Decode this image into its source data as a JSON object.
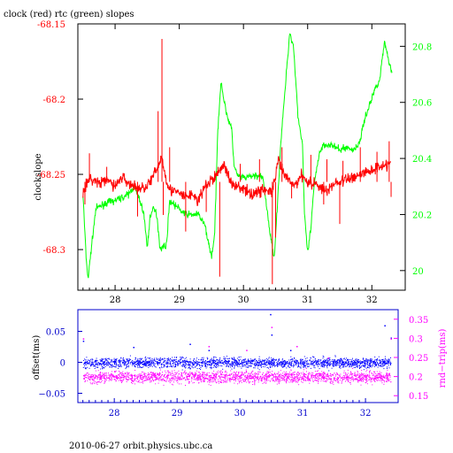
{
  "chart_data": [
    {
      "type": "line",
      "title": "clock (red) rtc (green) slopes",
      "ylabel_left": "clockslope",
      "xlim": [
        27.42,
        32.52
      ],
      "x_ticks": [
        "28",
        "29",
        "30",
        "31",
        "32"
      ],
      "left_axis": {
        "ylim": [
          -68.327,
          -68.15
        ],
        "ticks": [
          "-68.15",
          "-68.2",
          "-68.25",
          "-68.3"
        ],
        "color": "#ff0000"
      },
      "right_axis": {
        "ylim": [
          19.93,
          20.88
        ],
        "ticks": [
          "20",
          "20.2",
          "20.4",
          "20.6",
          "20.8"
        ],
        "color": "#00ff00"
      },
      "series": [
        {
          "name": "clock",
          "axis": "left",
          "color": "#ff0000",
          "points": [
            [
              27.5,
              -68.26
            ],
            [
              27.62,
              -68.253
            ],
            [
              27.75,
              -68.256
            ],
            [
              27.9,
              -68.254
            ],
            [
              28.0,
              -68.258
            ],
            [
              28.1,
              -68.252
            ],
            [
              28.25,
              -68.257
            ],
            [
              28.4,
              -68.26
            ],
            [
              28.55,
              -68.255
            ],
            [
              28.65,
              -68.247
            ],
            [
              28.72,
              -68.238
            ],
            [
              28.78,
              -68.25
            ],
            [
              28.85,
              -68.26
            ],
            [
              28.95,
              -68.262
            ],
            [
              29.1,
              -68.265
            ],
            [
              29.2,
              -68.263
            ],
            [
              29.3,
              -68.268
            ],
            [
              29.4,
              -68.258
            ],
            [
              29.55,
              -68.252
            ],
            [
              29.7,
              -68.243
            ],
            [
              29.8,
              -68.256
            ],
            [
              29.9,
              -68.257
            ],
            [
              30.0,
              -68.26
            ],
            [
              30.1,
              -68.263
            ],
            [
              30.2,
              -68.262
            ],
            [
              30.3,
              -68.26
            ],
            [
              30.45,
              -68.262
            ],
            [
              30.55,
              -68.24
            ],
            [
              30.6,
              -68.248
            ],
            [
              30.7,
              -68.254
            ],
            [
              30.8,
              -68.258
            ],
            [
              30.9,
              -68.25
            ],
            [
              31.0,
              -68.255
            ],
            [
              31.1,
              -68.256
            ],
            [
              31.2,
              -68.258
            ],
            [
              31.3,
              -68.262
            ],
            [
              31.4,
              -68.256
            ],
            [
              31.5,
              -68.255
            ],
            [
              31.65,
              -68.253
            ],
            [
              31.8,
              -68.25
            ],
            [
              31.95,
              -68.248
            ],
            [
              32.1,
              -68.245
            ],
            [
              32.2,
              -68.243
            ],
            [
              32.3,
              -68.244
            ]
          ],
          "spikes": [
            [
              27.53,
              -68.27
            ],
            [
              27.6,
              -68.236
            ],
            [
              27.87,
              -68.245
            ],
            [
              28.35,
              -68.278
            ],
            [
              28.67,
              -68.208
            ],
            [
              28.73,
              -68.16
            ],
            [
              28.75,
              -68.277
            ],
            [
              28.85,
              -68.232
            ],
            [
              29.1,
              -68.288
            ],
            [
              29.42,
              -68.275
            ],
            [
              29.55,
              -68.25
            ],
            [
              29.63,
              -68.318
            ],
            [
              29.95,
              -68.243
            ],
            [
              30.25,
              -68.24
            ],
            [
              30.45,
              -68.323
            ],
            [
              30.5,
              -68.292
            ],
            [
              30.6,
              -68.232
            ],
            [
              30.75,
              -68.266
            ],
            [
              31.05,
              -68.237
            ],
            [
              31.25,
              -68.27
            ],
            [
              31.3,
              -68.24
            ],
            [
              31.5,
              -68.283
            ],
            [
              31.55,
              -68.241
            ],
            [
              31.82,
              -68.232
            ],
            [
              32.08,
              -68.235
            ],
            [
              32.27,
              -68.228
            ],
            [
              32.3,
              -68.265
            ]
          ]
        },
        {
          "name": "rtc",
          "axis": "right",
          "color": "#00ff00",
          "points": [
            [
              27.5,
              20.27
            ],
            [
              27.55,
              20.04
            ],
            [
              27.58,
              19.97
            ],
            [
              27.62,
              20.06
            ],
            [
              27.7,
              20.22
            ],
            [
              27.85,
              20.24
            ],
            [
              28.0,
              20.25
            ],
            [
              28.2,
              20.27
            ],
            [
              28.3,
              20.3
            ],
            [
              28.4,
              20.24
            ],
            [
              28.45,
              20.2
            ],
            [
              28.5,
              20.08
            ],
            [
              28.55,
              20.2
            ],
            [
              28.6,
              20.22
            ],
            [
              28.65,
              20.2
            ],
            [
              28.7,
              20.08
            ],
            [
              28.8,
              20.09
            ],
            [
              28.85,
              20.25
            ],
            [
              28.95,
              20.23
            ],
            [
              29.1,
              20.2
            ],
            [
              29.3,
              20.2
            ],
            [
              29.4,
              20.16
            ],
            [
              29.5,
              20.05
            ],
            [
              29.55,
              20.12
            ],
            [
              29.6,
              20.5
            ],
            [
              29.65,
              20.68
            ],
            [
              29.7,
              20.6
            ],
            [
              29.75,
              20.55
            ],
            [
              29.82,
              20.5
            ],
            [
              29.85,
              20.38
            ],
            [
              29.9,
              20.34
            ],
            [
              30.0,
              20.33
            ],
            [
              30.2,
              20.34
            ],
            [
              30.3,
              20.33
            ],
            [
              30.35,
              20.25
            ],
            [
              30.42,
              20.12
            ],
            [
              30.48,
              20.05
            ],
            [
              30.52,
              20.2
            ],
            [
              30.58,
              20.45
            ],
            [
              30.65,
              20.65
            ],
            [
              30.72,
              20.85
            ],
            [
              30.78,
              20.8
            ],
            [
              30.85,
              20.55
            ],
            [
              30.92,
              20.45
            ],
            [
              30.95,
              20.2
            ],
            [
              31.0,
              20.06
            ],
            [
              31.05,
              20.15
            ],
            [
              31.1,
              20.3
            ],
            [
              31.18,
              20.42
            ],
            [
              31.25,
              20.45
            ],
            [
              31.35,
              20.45
            ],
            [
              31.5,
              20.43
            ],
            [
              31.6,
              20.44
            ],
            [
              31.7,
              20.43
            ],
            [
              31.8,
              20.45
            ],
            [
              31.85,
              20.5
            ],
            [
              31.9,
              20.55
            ],
            [
              31.98,
              20.6
            ],
            [
              32.05,
              20.65
            ],
            [
              32.12,
              20.68
            ],
            [
              32.2,
              20.82
            ],
            [
              32.26,
              20.75
            ],
            [
              32.32,
              20.7
            ]
          ]
        }
      ]
    },
    {
      "type": "scatter",
      "ylabel_left": "offset(ms)",
      "ylabel_right": "rnd−trip(ms)",
      "xlim": [
        27.42,
        32.52
      ],
      "x_ticks": [
        "28",
        "29",
        "30",
        "31",
        "32"
      ],
      "left_axis": {
        "ylim": [
          -0.065,
          0.085
        ],
        "ticks": [
          "0.05",
          "0",
          "−0.05"
        ],
        "color": "#0000ff"
      },
      "right_axis": {
        "ylim": [
          0.132,
          0.375
        ],
        "ticks": [
          "0.35",
          "0.3",
          "0.25",
          "0.2",
          "0.15"
        ],
        "color": "#ff00ff"
      },
      "series": [
        {
          "name": "offset",
          "axis": "left",
          "color": "#0000ff",
          "center": 0.0,
          "spread": 0.008,
          "outliers": [
            [
              27.5,
              0.035
            ],
            [
              28.3,
              0.025
            ],
            [
              29.2,
              0.03
            ],
            [
              29.5,
              0.02
            ],
            [
              30.48,
              0.078
            ],
            [
              30.5,
              0.045
            ],
            [
              30.8,
              0.02
            ],
            [
              32.3,
              0.06
            ],
            [
              32.4,
              0.04
            ]
          ]
        },
        {
          "name": "rnd-trip",
          "axis": "right",
          "color": "#ff00ff",
          "center": 0.2,
          "spread": 0.015,
          "outliers": [
            [
              27.5,
              0.3
            ],
            [
              29.5,
              0.28
            ],
            [
              30.1,
              0.27
            ],
            [
              30.5,
              0.33
            ],
            [
              30.9,
              0.28
            ],
            [
              31.4,
              0.25
            ],
            [
              32.4,
              0.3
            ]
          ]
        }
      ]
    }
  ],
  "footer": {
    "caption": "2010-06-27  orbit.physics.ubc.ca"
  },
  "colors": {
    "frame": "#000000",
    "clock": "#ff0000",
    "rtc": "#00ff00",
    "offset": "#0000ff",
    "rndtrip": "#ff00ff",
    "bottom_axis": "#0000cc"
  }
}
